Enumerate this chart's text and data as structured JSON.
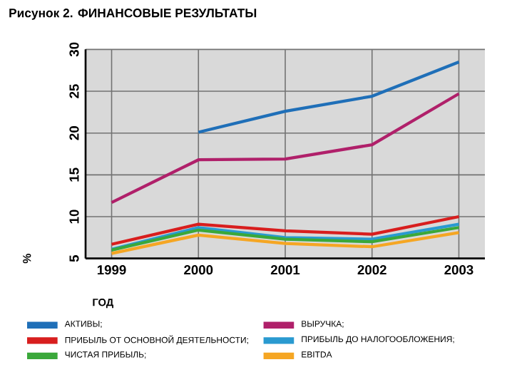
{
  "chart_data": {
    "type": "line",
    "title": "Рисунок 2. ФИНАНСОВЫЕ РЕЗУЛЬТАТЫ",
    "xlabel": "ГОД",
    "ylabel": "%",
    "x": [
      1999,
      2000,
      2001,
      2002,
      2003
    ],
    "series": [
      {
        "name": "АКТИВЫ;",
        "color": "#1f6fb8",
        "values": [
          null,
          20.1,
          22.6,
          24.4,
          28.5
        ]
      },
      {
        "name": "ВЫРУЧКА;",
        "color": "#b0206a",
        "values": [
          11.7,
          16.8,
          16.9,
          18.6,
          24.7
        ]
      },
      {
        "name": "ПРИБЫЛЬ ОТ ОСНОВНОЙ ДЕЯТЕЛЬНОСТИ;",
        "color": "#d81e1e",
        "values": [
          6.7,
          9.1,
          8.3,
          7.9,
          10.0
        ]
      },
      {
        "name": "ПРИБЫЛЬ ДО НАЛОГООБЛОЖЕНИЯ;",
        "color": "#2a9ad0",
        "values": [
          6.1,
          8.7,
          7.5,
          7.3,
          9.1
        ]
      },
      {
        "name": "ЧИСТАЯ ПРИБЫЛЬ;",
        "color": "#3aa83a",
        "values": [
          6.0,
          8.4,
          7.3,
          7.0,
          8.7
        ]
      },
      {
        "name": "EBITDA",
        "color": "#f5a623",
        "values": [
          5.6,
          7.8,
          6.8,
          6.4,
          8.1
        ]
      }
    ],
    "xlim": [
      1998.7,
      2003.3
    ],
    "xticks": [
      1999,
      2000,
      2001,
      2002,
      2003
    ],
    "ylim": [
      5,
      30
    ],
    "yticks": [
      5,
      10,
      15,
      20,
      25,
      30
    ],
    "grid": true,
    "legend": "bottom",
    "line_style": "solid",
    "marker": "none"
  }
}
